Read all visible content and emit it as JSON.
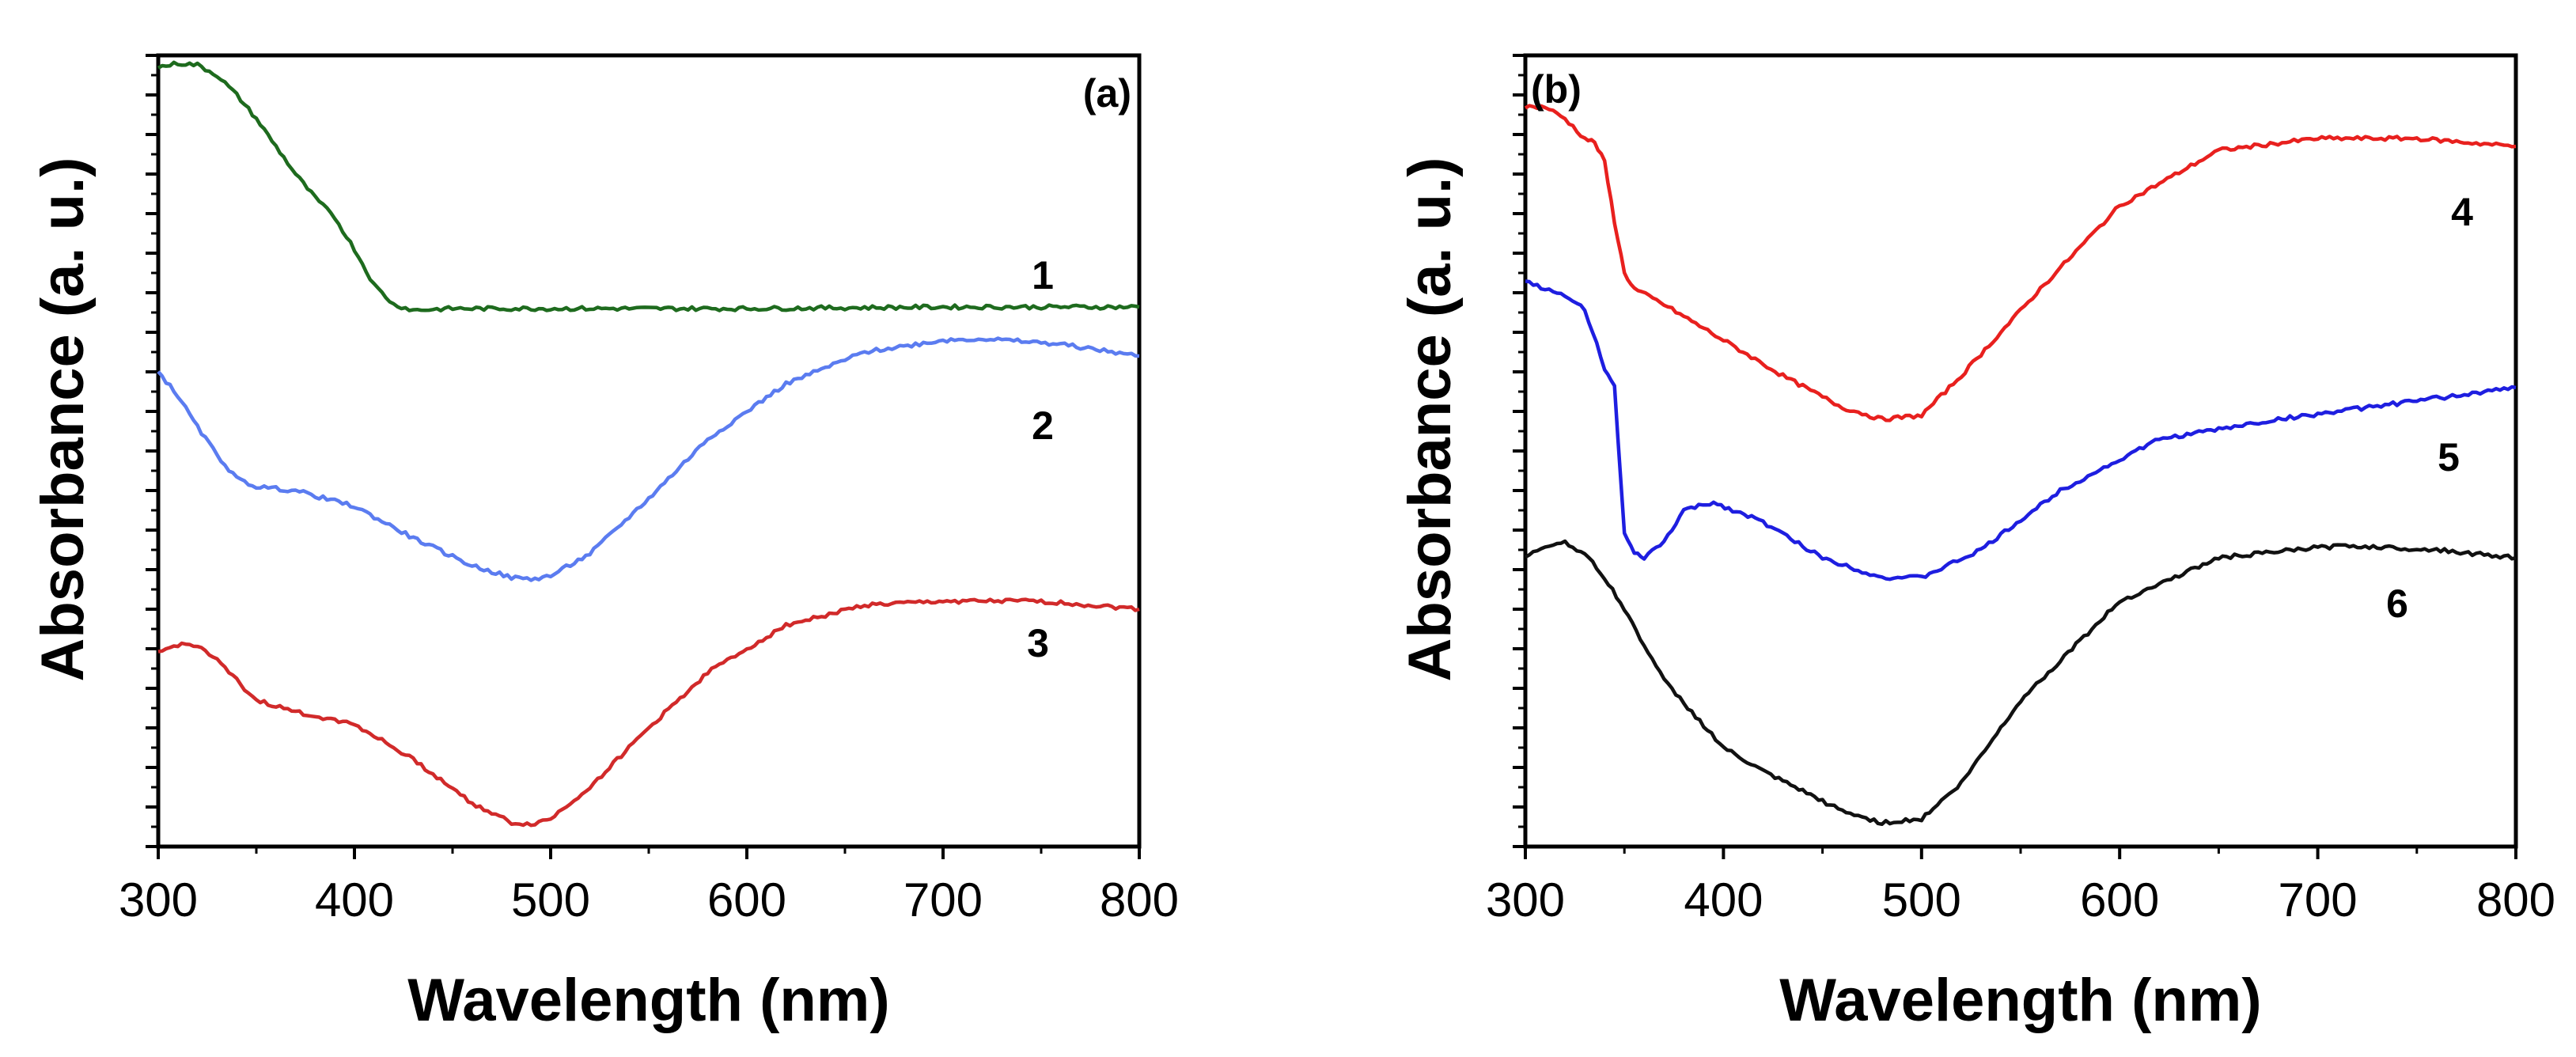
{
  "chart_data": [
    {
      "type": "line",
      "panel_label": "(a)",
      "xlabel": "Wavelength (nm)",
      "ylabel": "Absorbance (a. u.)",
      "xlim": [
        300,
        800
      ],
      "ylim": [
        0,
        10
      ],
      "xticks": [
        "300",
        "400",
        "500",
        "600",
        "700",
        "800"
      ],
      "y_tick_labels_shown": false,
      "series": [
        {
          "name": "1",
          "color": "#1e6b1e",
          "x": [
            300,
            310,
            320,
            330,
            340,
            350,
            360,
            370,
            380,
            390,
            400,
            410,
            420,
            430,
            450,
            500,
            600,
            700,
            800
          ],
          "y": [
            9.85,
            9.9,
            9.88,
            9.75,
            9.5,
            9.2,
            8.85,
            8.5,
            8.2,
            7.95,
            7.55,
            7.1,
            6.85,
            6.78,
            6.8,
            6.8,
            6.8,
            6.82,
            6.82
          ]
        },
        {
          "name": "2",
          "color": "#5b7cf0",
          "x": [
            300,
            310,
            320,
            330,
            340,
            350,
            370,
            400,
            430,
            460,
            480,
            490,
            500,
            520,
            550,
            580,
            620,
            660,
            700,
            720,
            760,
            800
          ],
          "y": [
            6.0,
            5.7,
            5.3,
            4.95,
            4.65,
            4.55,
            4.5,
            4.3,
            3.9,
            3.55,
            3.4,
            3.38,
            3.42,
            3.7,
            4.4,
            5.15,
            5.85,
            6.25,
            6.4,
            6.42,
            6.35,
            6.2
          ]
        },
        {
          "name": "3",
          "color": "#d12a2a",
          "x": [
            300,
            310,
            320,
            330,
            340,
            350,
            370,
            400,
            430,
            460,
            480,
            490,
            500,
            520,
            550,
            580,
            620,
            660,
            700,
            750,
            800
          ],
          "y": [
            2.45,
            2.55,
            2.55,
            2.35,
            2.1,
            1.85,
            1.7,
            1.55,
            1.1,
            0.55,
            0.3,
            0.28,
            0.35,
            0.75,
            1.5,
            2.2,
            2.8,
            3.05,
            3.1,
            3.1,
            3.0
          ]
        }
      ],
      "annotations": [
        {
          "text": "1",
          "series": "1"
        },
        {
          "text": "2",
          "series": "2"
        },
        {
          "text": "3",
          "series": "3"
        }
      ]
    },
    {
      "type": "line",
      "panel_label": "(b)",
      "xlabel": "Wavelength (nm)",
      "ylabel": "Absorbance (a. u.)",
      "xlim": [
        300,
        800
      ],
      "ylim": [
        0,
        10
      ],
      "xticks": [
        "300",
        "400",
        "500",
        "600",
        "700",
        "800"
      ],
      "y_tick_labels_shown": false,
      "series": [
        {
          "name": "4",
          "color": "#e8201e",
          "x": [
            300,
            310,
            320,
            330,
            335,
            340,
            345,
            350,
            355,
            370,
            400,
            430,
            460,
            480,
            500,
            520,
            560,
            600,
            650,
            700,
            750,
            800
          ],
          "y": [
            9.35,
            9.35,
            9.2,
            8.95,
            8.9,
            8.65,
            7.9,
            7.25,
            7.05,
            6.85,
            6.4,
            5.95,
            5.55,
            5.4,
            5.45,
            5.95,
            7.05,
            8.1,
            8.8,
            8.95,
            8.95,
            8.85
          ]
        },
        {
          "name": "5",
          "color": "#1e1ee0",
          "x": [
            300,
            310,
            320,
            330,
            340,
            345,
            350,
            355,
            360,
            370,
            380,
            395,
            420,
            450,
            480,
            500,
            530,
            570,
            620,
            680,
            740,
            800
          ],
          "y": [
            7.15,
            7.05,
            6.95,
            6.8,
            6.05,
            5.8,
            3.95,
            3.7,
            3.65,
            3.85,
            4.25,
            4.35,
            4.1,
            3.65,
            3.4,
            3.4,
            3.75,
            4.5,
            5.15,
            5.4,
            5.6,
            5.8
          ]
        },
        {
          "name": "6",
          "color": "#111111",
          "x": [
            300,
            310,
            320,
            330,
            340,
            350,
            370,
            400,
            420,
            440,
            460,
            480,
            500,
            520,
            550,
            600,
            650,
            700,
            720,
            760,
            800
          ],
          "y": [
            3.65,
            3.8,
            3.85,
            3.7,
            3.4,
            3.0,
            2.1,
            1.25,
            0.95,
            0.7,
            0.45,
            0.3,
            0.35,
            0.8,
            1.85,
            3.1,
            3.65,
            3.78,
            3.8,
            3.75,
            3.65
          ]
        }
      ],
      "annotations": [
        {
          "text": "4",
          "series": "4"
        },
        {
          "text": "5",
          "series": "5"
        },
        {
          "text": "6",
          "series": "6"
        }
      ]
    }
  ]
}
